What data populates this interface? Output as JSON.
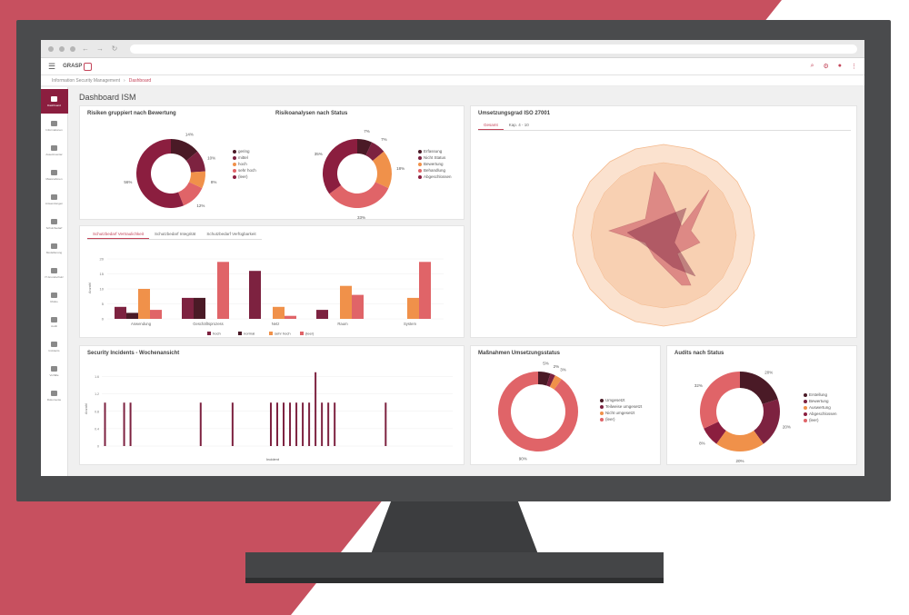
{
  "colors": {
    "crimson": "#c4455a",
    "dark": "#4a1a26",
    "wine": "#7d2240",
    "orange": "#f0914a",
    "salmon": "#e06468",
    "peach": "#f6c49a"
  },
  "breadcrumbs": [
    "Information Security Management",
    "Dashboard"
  ],
  "page_title": "Dashboard ISM",
  "app": {
    "logo": "GRASP"
  },
  "sidebar": [
    {
      "label": "Dashboard",
      "icon": "dashboard-icon"
    },
    {
      "label": "Informationen",
      "icon": "info-icon"
    },
    {
      "label": "Assetinventar",
      "icon": "asset-icon"
    },
    {
      "label": "Massnahmen",
      "icon": "measures-icon"
    },
    {
      "label": "Anwendungen",
      "icon": "network-icon"
    },
    {
      "label": "Schutzbedarf",
      "icon": "shield-icon"
    },
    {
      "label": "Modellierung",
      "icon": "model-icon"
    },
    {
      "label": "IT-Grundschutz",
      "icon": "check-icon"
    },
    {
      "label": "Risiko",
      "icon": "risk-icon"
    },
    {
      "label": "Audit",
      "icon": "audit-icon"
    },
    {
      "label": "Incidents",
      "icon": "incident-icon"
    },
    {
      "label": "Vorfälle",
      "icon": "bell-icon"
    },
    {
      "label": "Dokumente",
      "icon": "doc-icon"
    }
  ],
  "cards": {
    "risks": {
      "title1": "Risiken gruppiert nach Bewertung",
      "title2": "Risikoanalysen nach Status"
    },
    "protect": {
      "tabs": [
        "Schutzbedarf Vertraulichkeit",
        "Schutzbedarf Integrität",
        "Schutzbedarf Verfügbarkeit"
      ]
    },
    "iso": {
      "title": "Umsetzungsgrad ISO 27001",
      "tabs": [
        "Gesamt",
        "Kap. 4 - 10"
      ]
    },
    "incidents": {
      "title": "Security Incidents - Wochenansicht",
      "legend": "Incident"
    },
    "measures": {
      "title": "Maßnahmen Umsetzungsstatus"
    },
    "audits": {
      "title": "Audits nach Status"
    }
  },
  "chart_data": [
    {
      "type": "pie",
      "title": "Risiken gruppiert nach Bewertung",
      "labels": [
        "gering",
        "mittel",
        "hoch",
        "sehr hoch",
        "(leer)"
      ],
      "values": [
        14,
        10,
        8,
        12,
        56
      ],
      "colors": [
        "#4a1a26",
        "#7d2240",
        "#f0914a",
        "#e06468",
        "#8b1e3f"
      ]
    },
    {
      "type": "pie",
      "title": "Risikoanalysen nach Status",
      "labels": [
        "Erfassung",
        "Nicht Status",
        "Bewertung",
        "Behandlung",
        "Abgeschlossen"
      ],
      "values": [
        7,
        7,
        18,
        33,
        35
      ],
      "colors": [
        "#4a1a26",
        "#7d2240",
        "#f0914a",
        "#e06468",
        "#8b1e3f"
      ]
    },
    {
      "type": "bar",
      "ylabel": "Anzahl",
      "ylim": [
        0,
        20
      ],
      "categories": [
        "Anwendung",
        "Geschäftsprozess",
        "Netz",
        "Raum",
        "System"
      ],
      "series": [
        {
          "name": "hoch",
          "values": [
            4,
            7,
            16,
            3,
            0
          ],
          "color": "#7d2240"
        },
        {
          "name": "normal",
          "values": [
            2,
            7,
            0,
            0,
            0
          ],
          "color": "#4a1a26"
        },
        {
          "name": "sehr hoch",
          "values": [
            10,
            0,
            4,
            11,
            7
          ],
          "color": "#f0914a"
        },
        {
          "name": "(leer)",
          "values": [
            3,
            19,
            1,
            8,
            19
          ],
          "color": "#e06468"
        }
      ]
    },
    {
      "type": "bar",
      "ylabel": "Anzahl",
      "ylim": [
        0,
        1.8
      ],
      "values": [
        1,
        0,
        0,
        1,
        1,
        0,
        0,
        0,
        0,
        0,
        0,
        0,
        0,
        0,
        0,
        1,
        0,
        0,
        0,
        0,
        1,
        0,
        0,
        0,
        0,
        0,
        1,
        1,
        1,
        1,
        1,
        1,
        1,
        1.7,
        1,
        1,
        1,
        0,
        0,
        0,
        0,
        0,
        0,
        0,
        1,
        0,
        0,
        0,
        0,
        0,
        0,
        0,
        0,
        0,
        0
      ],
      "series": [
        {
          "name": "Incident",
          "color": "#7d2240"
        }
      ]
    },
    {
      "type": "pie",
      "title": "Maßnahmen Umsetzungsstatus",
      "labels": [
        "Umgesetzt",
        "Teilweise umgesetzt",
        "Nicht umgesetzt",
        "(leer)"
      ],
      "values": [
        5,
        2,
        3,
        90
      ],
      "colors": [
        "#4a1a26",
        "#7d2240",
        "#f0914a",
        "#e06468"
      ]
    },
    {
      "type": "pie",
      "title": "Audits nach Status",
      "labels": [
        "Erstellung",
        "Bewertung",
        "Auswertung",
        "Abgeschlossen",
        "(leer)"
      ],
      "values": [
        20,
        20,
        20,
        8,
        32
      ],
      "colors": [
        "#4a1a26",
        "#7d2240",
        "#f0914a",
        "#8b1e3f",
        "#e06468"
      ]
    }
  ]
}
